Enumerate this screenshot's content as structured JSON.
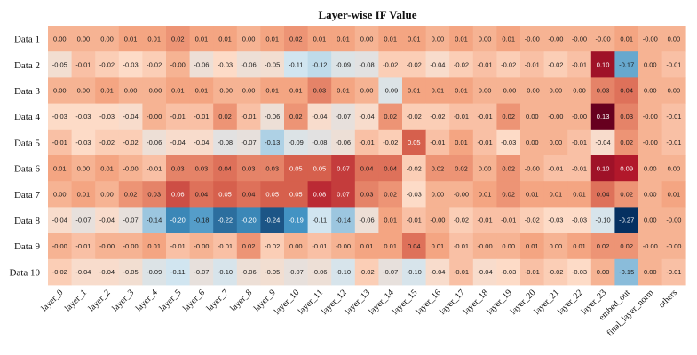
{
  "chart_data": {
    "type": "heatmap",
    "title": "Layer-wise IF Value",
    "xlabel": "",
    "ylabel": "",
    "rows": [
      "Data 1",
      "Data 2",
      "Data 3",
      "Data 4",
      "Data 5",
      "Data 6",
      "Data 7",
      "Data 8",
      "Data 9",
      "Data 10"
    ],
    "columns": [
      "layer_0",
      "layer_1",
      "layer_2",
      "layer_3",
      "layer_4",
      "layer_5",
      "layer_6",
      "layer_7",
      "layer_8",
      "layer_9",
      "layer_10",
      "layer_11",
      "layer_12",
      "layer_13",
      "layer_14",
      "layer_15",
      "layer_16",
      "layer_17",
      "layer_18",
      "layer_19",
      "layer_20",
      "layer_21",
      "layer_22",
      "layer_23",
      "embed_out",
      "final_layer_norm",
      "others"
    ],
    "value_labels": [
      [
        "0.00",
        "0.00",
        "0.00",
        "0.01",
        "0.01",
        "0.02",
        "0.01",
        "0.01",
        "0.00",
        "0.01",
        "0.02",
        "0.01",
        "0.01",
        "0.00",
        "0.01",
        "0.01",
        "0.00",
        "0.01",
        "0.00",
        "0.01",
        "-0.00",
        "-0.00",
        "-0.00",
        "-0.00",
        "0.01",
        "-0.00",
        "0.00"
      ],
      [
        "-0.05",
        "-0.01",
        "-0.02",
        "-0.03",
        "-0.02",
        "-0.00",
        "-0.06",
        "-0.03",
        "-0.06",
        "-0.05",
        "-0.11",
        "-0.12",
        "-0.09",
        "-0.08",
        "-0.02",
        "-0.02",
        "-0.04",
        "-0.02",
        "-0.01",
        "-0.02",
        "-0.01",
        "-0.02",
        "-0.01",
        "0.10",
        "-0.17",
        "0.00",
        "-0.01"
      ],
      [
        "0.00",
        "0.00",
        "0.01",
        "0.00",
        "-0.00",
        "0.01",
        "0.01",
        "-0.00",
        "0.00",
        "0.01",
        "0.01",
        "0.03",
        "0.01",
        "0.00",
        "-0.09",
        "0.01",
        "0.01",
        "0.01",
        "0.00",
        "-0.00",
        "-0.00",
        "0.00",
        "0.00",
        "0.03",
        "0.04",
        "0.00",
        "0.00"
      ],
      [
        "-0.03",
        "-0.03",
        "-0.03",
        "-0.04",
        "-0.00",
        "-0.01",
        "-0.01",
        "0.02",
        "-0.01",
        "-0.06",
        "0.02",
        "-0.04",
        "-0.07",
        "-0.04",
        "0.02",
        "-0.02",
        "-0.02",
        "-0.01",
        "-0.01",
        "0.02",
        "0.00",
        "-0.00",
        "-0.00",
        "0.13",
        "0.03",
        "-0.00",
        "-0.01"
      ],
      [
        "-0.01",
        "-0.03",
        "-0.02",
        "-0.02",
        "-0.06",
        "-0.04",
        "-0.04",
        "-0.08",
        "-0.07",
        "-0.13",
        "-0.09",
        "-0.08",
        "-0.06",
        "-0.01",
        "-0.02",
        "0.05",
        "-0.01",
        "0.01",
        "-0.01",
        "-0.03",
        "0.00",
        "0.00",
        "-0.01",
        "-0.04",
        "0.02",
        "-0.00",
        "-0.01"
      ],
      [
        "0.01",
        "0.00",
        "0.01",
        "-0.00",
        "-0.01",
        "0.03",
        "0.03",
        "0.04",
        "0.03",
        "0.03",
        "0.05",
        "0.05",
        "0.07",
        "0.04",
        "0.04",
        "-0.02",
        "0.02",
        "0.02",
        "0.00",
        "0.02",
        "-0.00",
        "-0.01",
        "-0.01",
        "0.10",
        "0.09",
        "0.00",
        "0.00"
      ],
      [
        "0.00",
        "0.01",
        "0.00",
        "0.02",
        "0.03",
        "0.06",
        "0.04",
        "0.05",
        "0.04",
        "0.05",
        "0.05",
        "0.08",
        "0.07",
        "0.03",
        "0.02",
        "-0.03",
        "0.00",
        "-0.00",
        "0.01",
        "0.02",
        "0.01",
        "0.01",
        "0.01",
        "0.04",
        "0.02",
        "0.00",
        "0.01"
      ],
      [
        "-0.04",
        "-0.07",
        "-0.04",
        "-0.07",
        "-0.14",
        "-0.20",
        "-0.18",
        "-0.22",
        "-0.20",
        "-0.24",
        "-0.19",
        "-0.11",
        "-0.14",
        "-0.06",
        "0.01",
        "-0.01",
        "-0.00",
        "-0.02",
        "-0.01",
        "-0.01",
        "-0.02",
        "-0.03",
        "-0.03",
        "-0.10",
        "-0.27",
        "0.00",
        "-0.00"
      ],
      [
        "-0.00",
        "-0.01",
        "-0.00",
        "-0.00",
        "0.01",
        "-0.01",
        "-0.00",
        "-0.01",
        "0.02",
        "-0.02",
        "0.00",
        "-0.01",
        "-0.00",
        "0.01",
        "0.01",
        "0.04",
        "0.01",
        "-0.01",
        "-0.00",
        "0.00",
        "0.01",
        "0.00",
        "0.01",
        "0.02",
        "0.02",
        "-0.00",
        "-0.00"
      ],
      [
        "-0.02",
        "-0.04",
        "-0.04",
        "-0.05",
        "-0.09",
        "-0.11",
        "-0.07",
        "-0.10",
        "-0.06",
        "-0.05",
        "-0.07",
        "-0.06",
        "-0.10",
        "-0.02",
        "-0.07",
        "-0.10",
        "-0.04",
        "-0.01",
        "-0.04",
        "-0.03",
        "-0.01",
        "-0.02",
        "-0.03",
        "0.00",
        "-0.15",
        "0.00",
        "-0.01"
      ]
    ],
    "color_scale": "diverging red-blue (RdBu_r), color range approx -0.27 (dark blue) to 0.13 (dark red)",
    "vmin": -0.27,
    "vmax": 0.13
  },
  "colors": {
    "blue_dark": "#053061",
    "blue_mid": "#4393c3",
    "blue_light": "#d1e5f0",
    "neutral": "#f7f7f7",
    "red_light": "#fddbc7",
    "red_salmon": "#f4a582",
    "red_mid": "#d6604d",
    "red_deep": "#b2182b",
    "red_dark": "#67001f"
  }
}
